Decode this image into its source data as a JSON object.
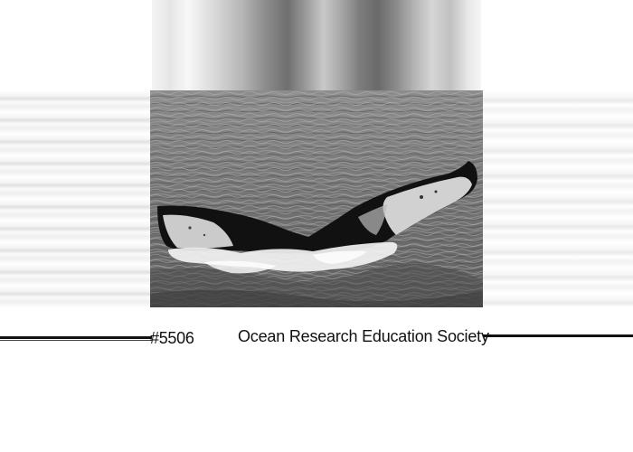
{
  "photo": {
    "subject": "whale-fluke-photo",
    "colors": {
      "sea": "#7a7a7a",
      "whale": "#111111",
      "underside": "#d8d8d8",
      "foam": "#f2f2f2"
    }
  },
  "caption": {
    "id_number": "#5506",
    "organization": "Ocean Research Education Society"
  }
}
